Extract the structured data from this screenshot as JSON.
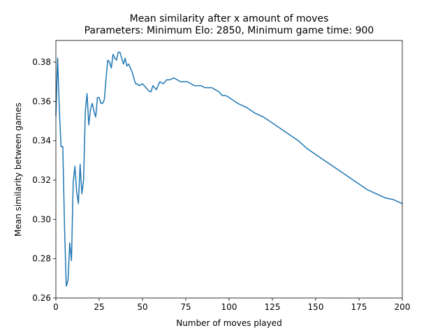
{
  "chart_data": {
    "type": "line",
    "title": "Mean similarity after x amount of moves",
    "subtitle": "Parameters: Minimum Elo: 2850, Minimum game time: 900",
    "xlabel": "Number of moves played",
    "ylabel": "Mean similarity between games",
    "xlim": [
      0,
      200
    ],
    "ylim": [
      0.26,
      0.391
    ],
    "xticks": [
      0,
      25,
      50,
      75,
      100,
      125,
      150,
      175,
      200
    ],
    "xtick_labels": [
      "0",
      "25",
      "50",
      "75",
      "100",
      "125",
      "150",
      "175",
      "200"
    ],
    "yticks": [
      0.26,
      0.28,
      0.3,
      0.32,
      0.34,
      0.36,
      0.38
    ],
    "ytick_labels": [
      "0.26",
      "0.28",
      "0.30",
      "0.32",
      "0.34",
      "0.36",
      "0.38"
    ],
    "grid": false,
    "series": [
      {
        "color": "#1f77b4",
        "x": [
          0,
          1,
          2,
          3,
          4,
          5,
          6,
          7,
          8,
          9,
          10,
          11,
          12,
          13,
          14,
          15,
          16,
          17,
          18,
          19,
          20,
          21,
          22,
          23,
          24,
          25,
          26,
          27,
          28,
          29,
          30,
          31,
          32,
          33,
          34,
          35,
          36,
          37,
          38,
          39,
          40,
          41,
          42,
          43,
          44,
          45,
          46,
          47,
          48,
          50,
          52,
          54,
          55,
          56,
          57,
          58,
          60,
          62,
          64,
          66,
          68,
          70,
          72,
          74,
          76,
          78,
          80,
          82,
          84,
          86,
          88,
          90,
          92,
          94,
          96,
          98,
          100,
          105,
          110,
          115,
          120,
          125,
          130,
          135,
          140,
          145,
          150,
          155,
          160,
          165,
          170,
          175,
          180,
          185,
          190,
          195,
          200
        ],
        "y": [
          0.353,
          0.382,
          0.356,
          0.337,
          0.337,
          0.296,
          0.266,
          0.269,
          0.288,
          0.279,
          0.319,
          0.327,
          0.314,
          0.308,
          0.328,
          0.313,
          0.32,
          0.355,
          0.364,
          0.348,
          0.356,
          0.359,
          0.355,
          0.352,
          0.362,
          0.362,
          0.359,
          0.359,
          0.361,
          0.372,
          0.381,
          0.38,
          0.377,
          0.384,
          0.382,
          0.381,
          0.385,
          0.385,
          0.382,
          0.379,
          0.382,
          0.378,
          0.379,
          0.377,
          0.375,
          0.372,
          0.369,
          0.369,
          0.368,
          0.369,
          0.367,
          0.365,
          0.365,
          0.368,
          0.367,
          0.366,
          0.37,
          0.369,
          0.371,
          0.371,
          0.372,
          0.371,
          0.37,
          0.37,
          0.37,
          0.369,
          0.368,
          0.368,
          0.368,
          0.367,
          0.367,
          0.367,
          0.366,
          0.365,
          0.363,
          0.363,
          0.362,
          0.359,
          0.357,
          0.354,
          0.352,
          0.349,
          0.346,
          0.343,
          0.34,
          0.336,
          0.333,
          0.33,
          0.327,
          0.324,
          0.321,
          0.318,
          0.315,
          0.313,
          0.311,
          0.31,
          0.308
        ]
      }
    ]
  }
}
